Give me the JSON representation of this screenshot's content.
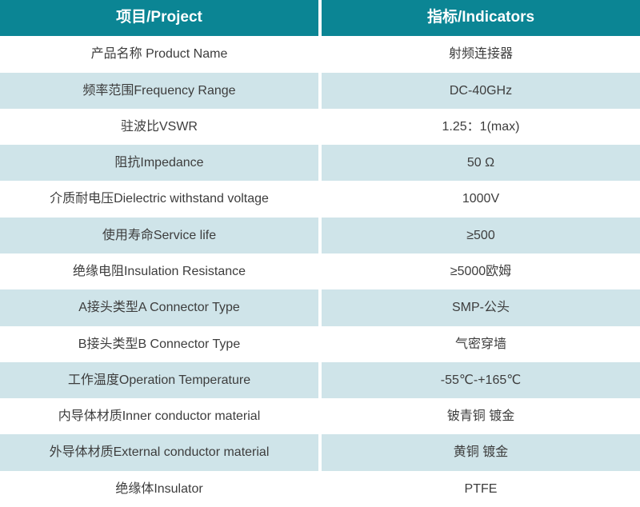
{
  "colors": {
    "header_bg": "#0b8594",
    "header_text": "#ffffff",
    "row_alt_bg": "#cfe4e9",
    "row_plain_bg": "#ffffff",
    "body_text": "#3d3d3d",
    "divider": "#ffffff"
  },
  "table": {
    "header": {
      "project": "项目/Project",
      "indicator": "指标/Indicators"
    },
    "rows": [
      {
        "project": "产品名称 Product Name",
        "indicator": "射频连接器"
      },
      {
        "project": "频率范围Frequency Range",
        "indicator": "DC-40GHz"
      },
      {
        "project": "驻波比VSWR",
        "indicator": "1.25：1(max)"
      },
      {
        "project": "阻抗Impedance",
        "indicator": "50 Ω"
      },
      {
        "project": "介质耐电压Dielectric withstand voltage",
        "indicator": "1000V"
      },
      {
        "project": "使用寿命Service life",
        "indicator": "≥500"
      },
      {
        "project": "绝缘电阻Insulation Resistance",
        "indicator": "≥5000欧姆"
      },
      {
        "project": "A接头类型A Connector Type",
        "indicator": "SMP-公头"
      },
      {
        "project": "B接头类型B Connector Type",
        "indicator": "气密穿墙"
      },
      {
        "project": "工作温度Operation Temperature",
        "indicator": "-55℃-+165℃"
      },
      {
        "project": "内导体材质Inner conductor material",
        "indicator": "铍青铜 镀金"
      },
      {
        "project": "外导体材质External conductor material",
        "indicator": "黄铜 镀金"
      },
      {
        "project": "绝缘体Insulator",
        "indicator": "PTFE"
      }
    ]
  }
}
